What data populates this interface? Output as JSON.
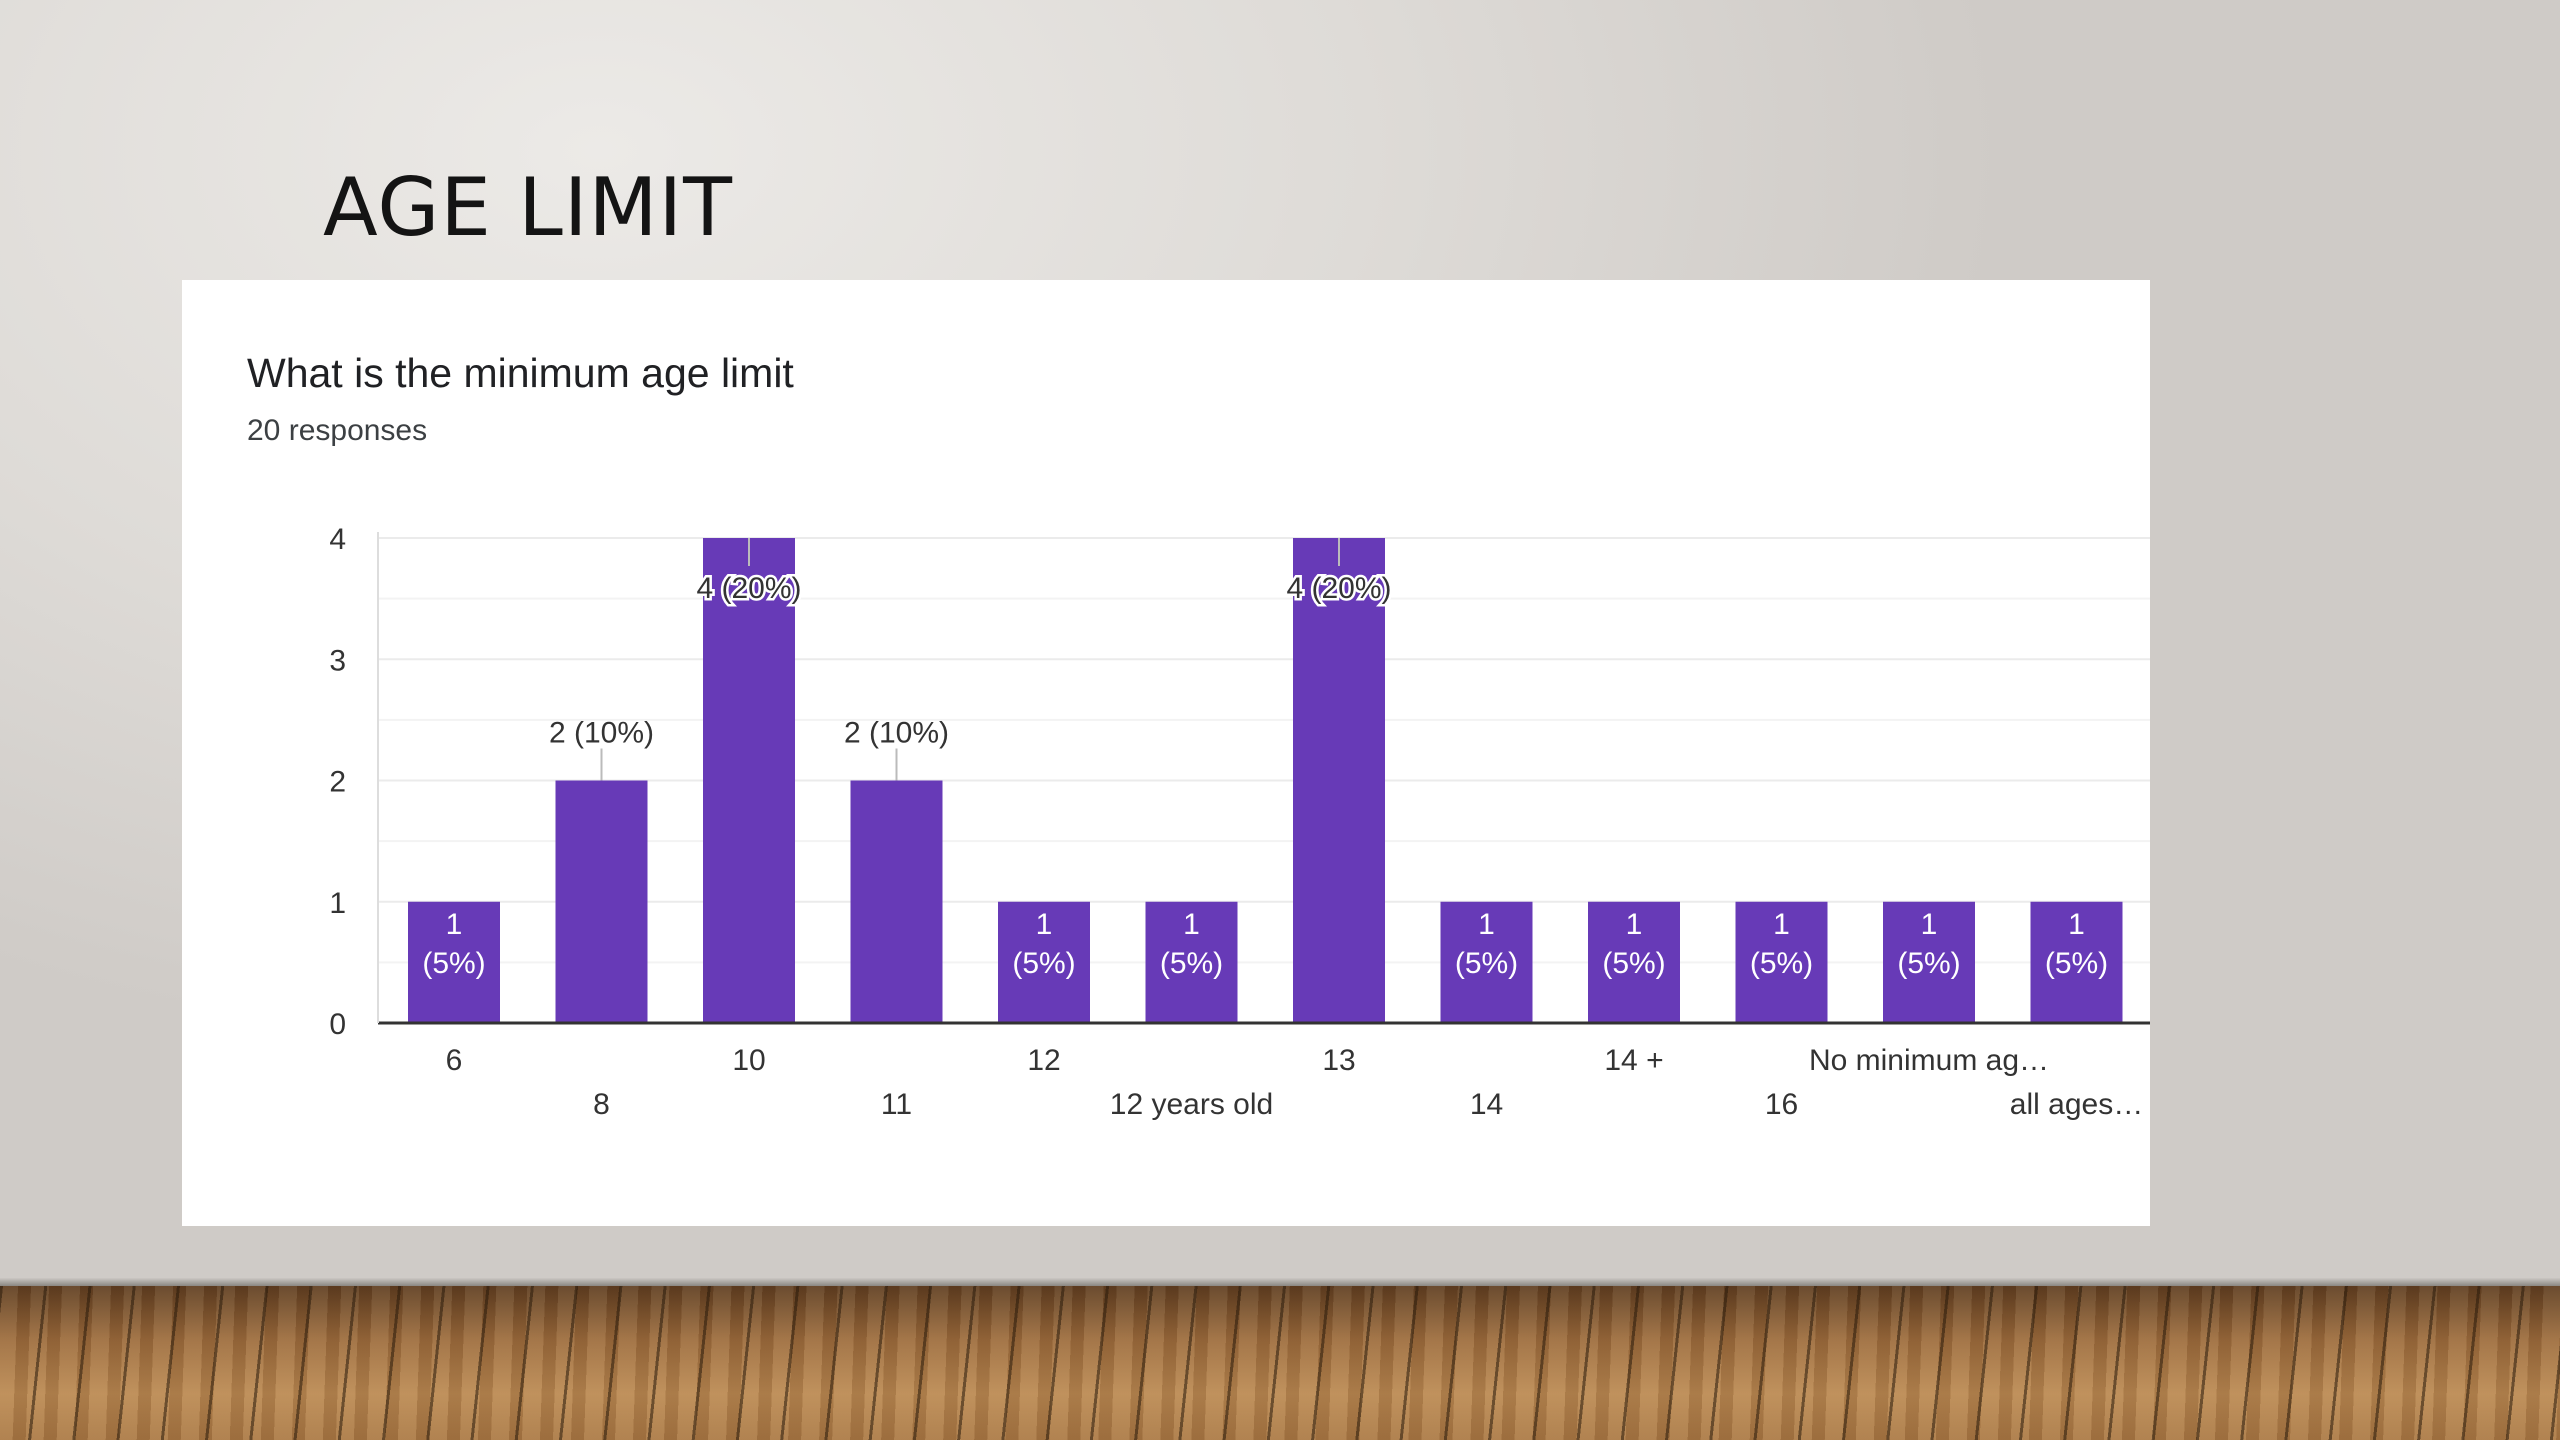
{
  "slide": {
    "title": "AGE LIMIT"
  },
  "card": {
    "question": "What is the minimum age limit",
    "responses": "20 responses"
  },
  "colors": {
    "bar": "#673ab7",
    "grid": "#ebebeb",
    "axis": "#333333",
    "label_text": "#333333",
    "inner_label_text": "#ffffff"
  },
  "chart_data": {
    "type": "bar",
    "title": "What is the minimum age limit",
    "categories": [
      "6",
      "8",
      "10",
      "11",
      "12",
      "12 years old",
      "13",
      "14",
      "14 +",
      "16",
      "No minimum ag…",
      "all ages…"
    ],
    "values": [
      1,
      2,
      4,
      2,
      1,
      1,
      4,
      1,
      1,
      1,
      1,
      1
    ],
    "data_labels": [
      "1 (5%)",
      "2 (10%)",
      "4 (20%)",
      "2 (10%)",
      "1 (5%)",
      "1 (5%)",
      "4 (20%)",
      "1 (5%)",
      "1 (5%)",
      "1 (5%)",
      "1 (5%)",
      "1 (5%)"
    ],
    "percentages": [
      "5%",
      "10%",
      "20%",
      "10%",
      "5%",
      "5%",
      "20%",
      "5%",
      "5%",
      "5%",
      "5%",
      "5%"
    ],
    "yticks": [
      "0",
      "1",
      "2",
      "3",
      "4"
    ],
    "ylim": [
      0,
      4
    ],
    "xlabel": "",
    "ylabel": "",
    "grid": true,
    "minor_grid": true,
    "legend": "none"
  }
}
